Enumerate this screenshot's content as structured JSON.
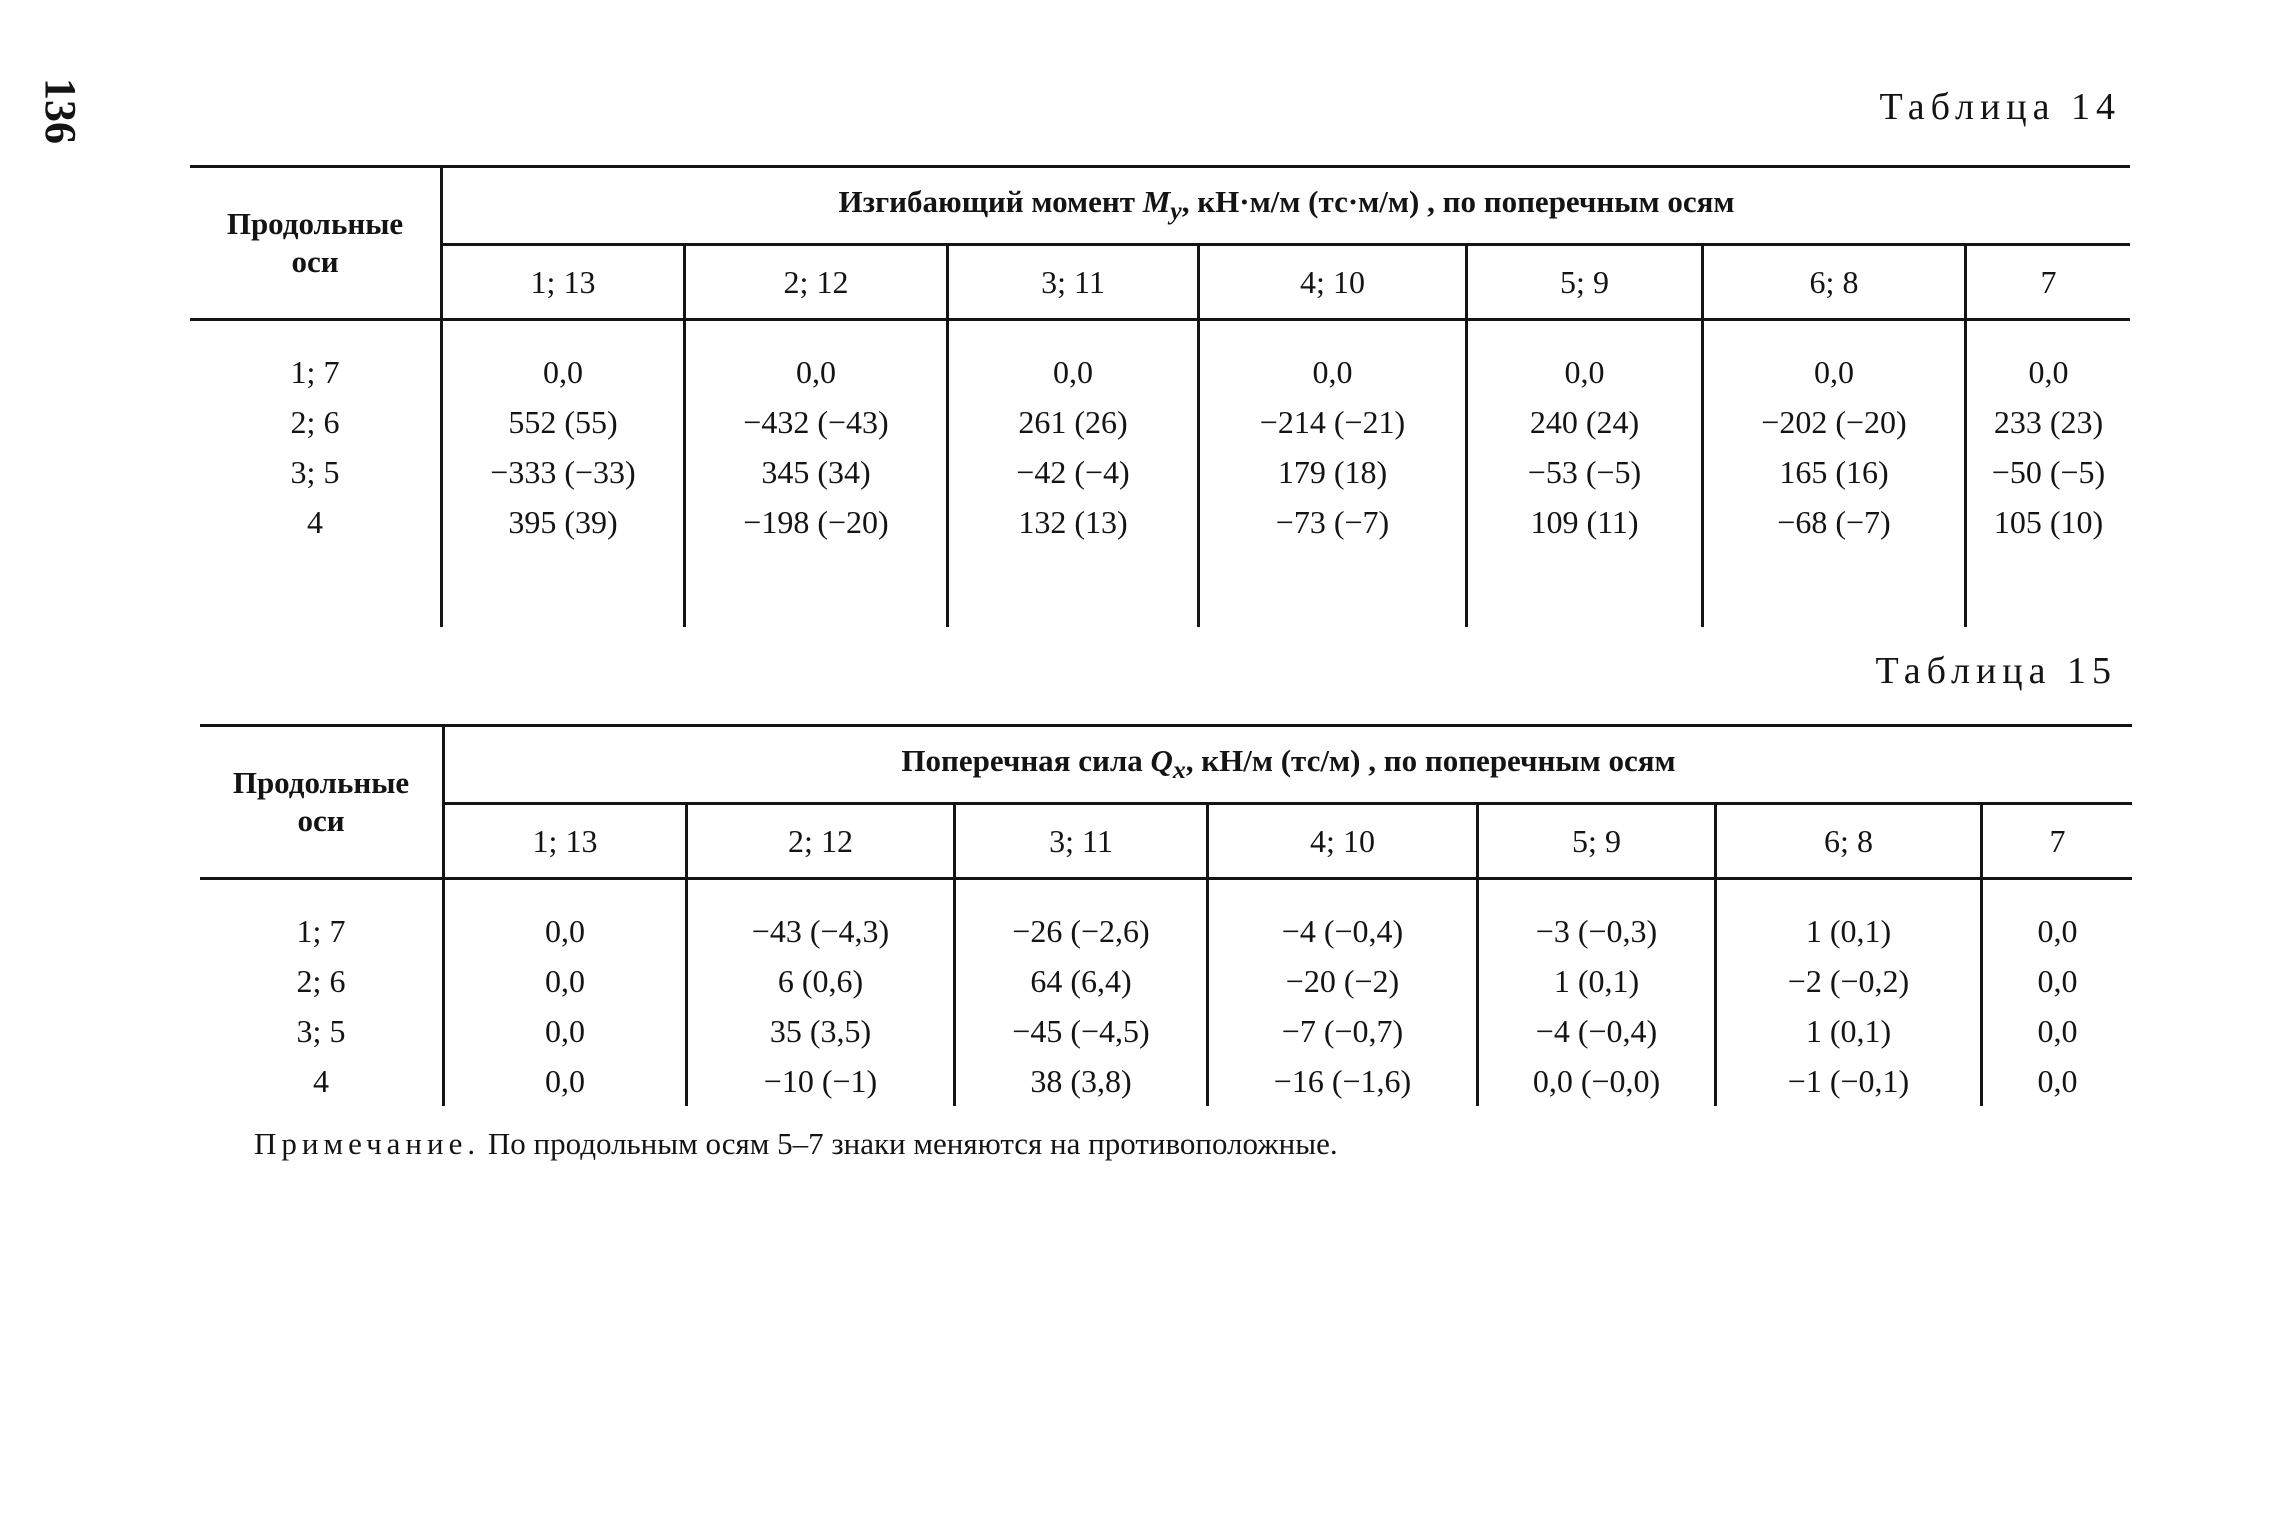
{
  "page_number": "136",
  "table14": {
    "caption": "Таблица 14",
    "row_header": [
      "Продольные",
      "оси"
    ],
    "group_header": "Изгибающий момент M_y, кН·м/м (тс·м/м) , по поперечным осям",
    "group_header_parts": {
      "pre": "Изгибающий момент ",
      "sym": "M",
      "sub": "y",
      "post": ", кН·м/м (тс·м/м) , по поперечным осям"
    },
    "columns": [
      "1; 13",
      "2; 12",
      "3; 11",
      "4; 10",
      "5; 9",
      "6; 8",
      "7"
    ],
    "rows": [
      {
        "label": "1; 7",
        "values": [
          "0,0",
          "0,0",
          "0,0",
          "0,0",
          "0,0",
          "0,0",
          "0,0"
        ]
      },
      {
        "label": "2; 6",
        "values": [
          "552 (55)",
          "−432 (−43)",
          "261 (26)",
          "−214 (−21)",
          "240 (24)",
          "−202 (−20)",
          "233 (23)"
        ]
      },
      {
        "label": "3; 5",
        "values": [
          "−333 (−33)",
          "345 (34)",
          "−42 (−4)",
          "179 (18)",
          "−53 (−5)",
          "165 (16)",
          "−50 (−5)"
        ]
      },
      {
        "label": "4",
        "values": [
          "395 (39)",
          "−198 (−20)",
          "132 (13)",
          "−73 (−7)",
          "109 (11)",
          "−68 (−7)",
          "105 (10)"
        ]
      }
    ]
  },
  "table15": {
    "caption": "Таблица 15",
    "row_header": [
      "Продольные",
      "оси"
    ],
    "group_header_parts": {
      "pre": "Поперечная сила ",
      "sym": "Q",
      "sub": "x",
      "post": ", кН/м (тс/м) , по поперечным осям"
    },
    "columns": [
      "1; 13",
      "2; 12",
      "3; 11",
      "4; 10",
      "5; 9",
      "6; 8",
      "7"
    ],
    "rows": [
      {
        "label": "1; 7",
        "values": [
          "0,0",
          "−43 (−4,3)",
          "−26 (−2,6)",
          "−4 (−0,4)",
          "−3 (−0,3)",
          "1 (0,1)",
          "0,0"
        ]
      },
      {
        "label": "2; 6",
        "values": [
          "0,0",
          "6 (0,6)",
          "64 (6,4)",
          "−20 (−2)",
          "1 (0,1)",
          "−2 (−0,2)",
          "0,0"
        ]
      },
      {
        "label": "3; 5",
        "values": [
          "0,0",
          "35 (3,5)",
          "−45 (−4,5)",
          "−7 (−0,7)",
          "−4 (−0,4)",
          "1 (0,1)",
          "0,0"
        ]
      },
      {
        "label": "4",
        "values": [
          "0,0",
          "−10 (−1)",
          "38 (3,8)",
          "−16 (−1,6)",
          "0,0 (−0,0)",
          "−1 (−0,1)",
          "0,0"
        ]
      }
    ]
  },
  "note": {
    "lead": "Примечание.",
    "text": " По продольным осям 5–7 знаки меняются на противоположные."
  }
}
